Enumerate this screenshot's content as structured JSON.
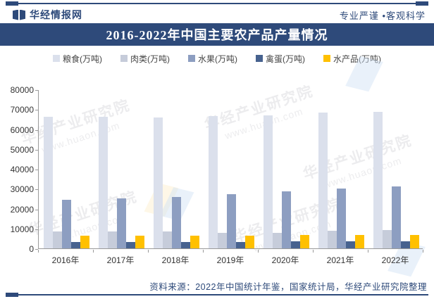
{
  "header": {
    "brand": "华经情报网",
    "slogan": "专业严谨 •客观科学"
  },
  "title": "2016-2022年中国主要农产品产量情况",
  "chart_data": {
    "type": "bar",
    "title": "2016-2022年中国主要农产品产量情况",
    "categories": [
      "2016年",
      "2017年",
      "2018年",
      "2019年",
      "2020年",
      "2021年",
      "2022年"
    ],
    "series": [
      {
        "name": "粮食(万吨)",
        "color": "#dbe0ec",
        "values": [
          66044,
          66161,
          65789,
          66384,
          66949,
          68285,
          68653
        ]
      },
      {
        "name": "肉类(万吨)",
        "color": "#c6ccda",
        "values": [
          8628,
          8654,
          8625,
          7759,
          7748,
          8990,
          9227
        ]
      },
      {
        "name": "水果(万吨)",
        "color": "#8d9ec1",
        "values": [
          24405,
          25242,
          25688,
          27401,
          28692,
          29970,
          31296
        ]
      },
      {
        "name": "禽蛋(万吨)",
        "color": "#47628f",
        "values": [
          3161,
          3096,
          3128,
          3309,
          3468,
          3409,
          3456
        ]
      },
      {
        "name": "水产品(万吨)",
        "color": "#ffc000",
        "values": [
          6379,
          6445,
          6458,
          6480,
          6549,
          6693,
          6866
        ]
      }
    ],
    "ylim": [
      0,
      80000
    ],
    "yticks": [
      0,
      10000,
      20000,
      30000,
      40000,
      50000,
      60000,
      70000,
      80000
    ],
    "xlabel": "",
    "ylabel": "",
    "grid": false,
    "legend_position": "top"
  },
  "watermark": {
    "name": "华经产业研究院",
    "site": "www.huaon.com"
  },
  "footer": {
    "source": "资料来源：2022年中国统计年鉴，国家统计局，华经产业研究院整理"
  },
  "colors": {
    "navy": "#2e4a7a",
    "accent_yellow": "#ffc000"
  }
}
